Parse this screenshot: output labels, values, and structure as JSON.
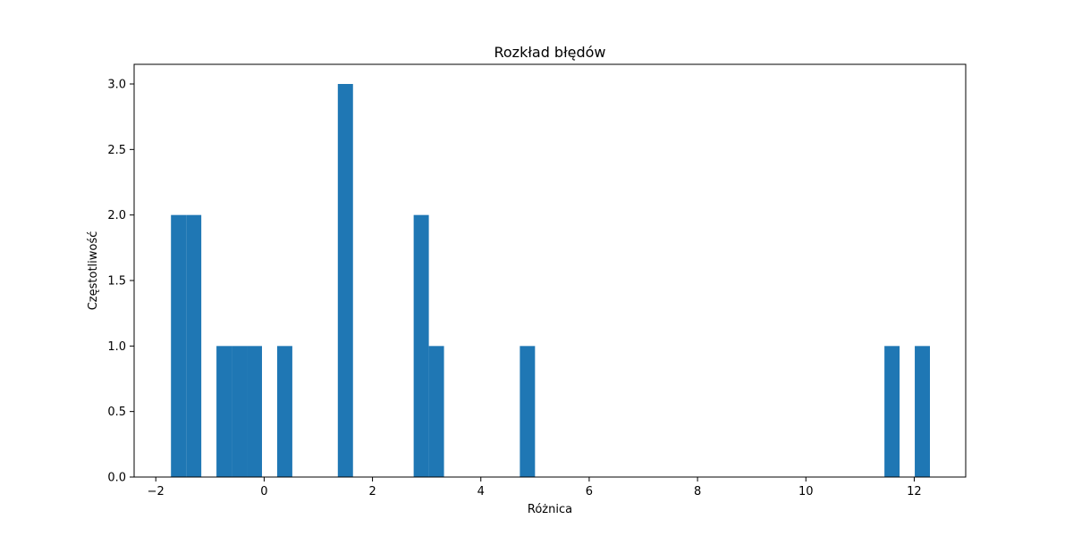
{
  "chart_data": {
    "type": "bar",
    "title": "Rozkład błędów",
    "xlabel": "Różnica",
    "ylabel": "Częstotliwość",
    "xlim": [
      -2.4,
      12.95
    ],
    "ylim": [
      0,
      3.15
    ],
    "x_ticks": [
      -2,
      0,
      2,
      4,
      6,
      8,
      10,
      12
    ],
    "x_tick_labels": [
      "−2",
      "0",
      "2",
      "4",
      "6",
      "8",
      "10",
      "12"
    ],
    "y_ticks": [
      0,
      0.5,
      1,
      1.5,
      2,
      2.5,
      3
    ],
    "y_tick_labels": [
      "0.0",
      "0.5",
      "1.0",
      "1.5",
      "2.0",
      "2.5",
      "3.0"
    ],
    "bar_color": "#1f77b4",
    "grid": false,
    "bins": [
      {
        "x0": -1.72,
        "x1": -1.44,
        "count": 2
      },
      {
        "x0": -1.44,
        "x1": -1.16,
        "count": 2
      },
      {
        "x0": -0.88,
        "x1": -0.6,
        "count": 1
      },
      {
        "x0": -0.6,
        "x1": -0.32,
        "count": 1
      },
      {
        "x0": -0.32,
        "x1": -0.04,
        "count": 1
      },
      {
        "x0": 0.24,
        "x1": 0.52,
        "count": 1
      },
      {
        "x0": 1.36,
        "x1": 1.64,
        "count": 3
      },
      {
        "x0": 2.76,
        "x1": 3.04,
        "count": 2
      },
      {
        "x0": 3.04,
        "x1": 3.32,
        "count": 1
      },
      {
        "x0": 4.72,
        "x1": 5.0,
        "count": 1
      },
      {
        "x0": 11.45,
        "x1": 11.73,
        "count": 1
      },
      {
        "x0": 12.01,
        "x1": 12.29,
        "count": 1
      }
    ]
  }
}
